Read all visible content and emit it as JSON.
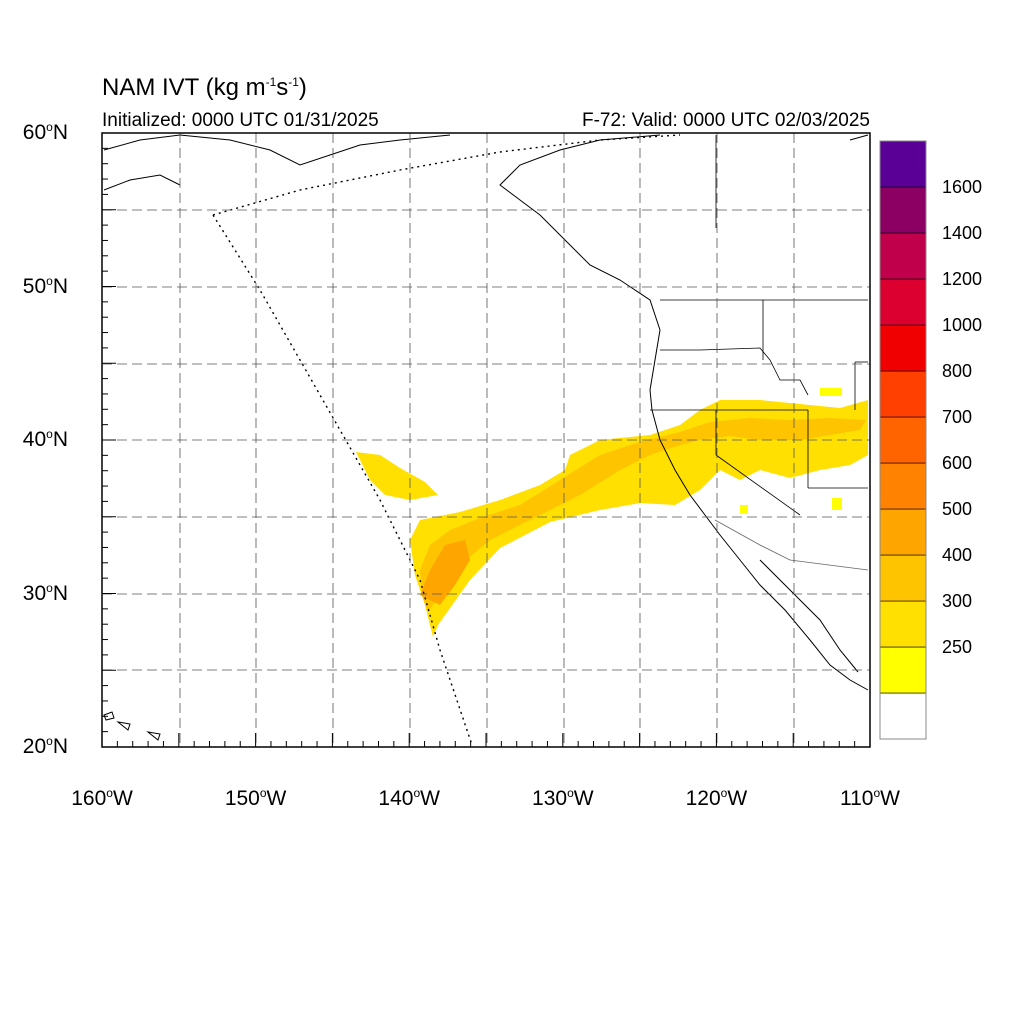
{
  "header": {
    "title": "NAM IVT (kg m",
    "title_sup1": "-1",
    "title_mid": "s",
    "title_sup2": "-1",
    "title_end": ")",
    "initialized": "Initialized: 0000 UTC 01/31/2025",
    "valid": "F-72: Valid: 0000 UTC 02/03/2025"
  },
  "axes": {
    "lat_labels": [
      {
        "deg": "60",
        "suffix": "N",
        "lat": 60
      },
      {
        "deg": "50",
        "suffix": "N",
        "lat": 50
      },
      {
        "deg": "40",
        "suffix": "N",
        "lat": 40
      },
      {
        "deg": "30",
        "suffix": "N",
        "lat": 30
      },
      {
        "deg": "20",
        "suffix": "N",
        "lat": 20
      }
    ],
    "lon_labels": [
      {
        "deg": "160",
        "suffix": "W",
        "lon": -160
      },
      {
        "deg": "150",
        "suffix": "W",
        "lon": -150
      },
      {
        "deg": "140",
        "suffix": "W",
        "lon": -140
      },
      {
        "deg": "130",
        "suffix": "W",
        "lon": -130
      },
      {
        "deg": "120",
        "suffix": "W",
        "lon": -120
      },
      {
        "deg": "110",
        "suffix": "W",
        "lon": -110
      }
    ],
    "lat_range": [
      20,
      60
    ],
    "lon_range": [
      -160,
      -110
    ],
    "grid": "dashed every 5 degrees"
  },
  "colorbar": {
    "levels": [
      {
        "label": "",
        "color": "#ffffff"
      },
      {
        "label": "250",
        "color": "#ffff00"
      },
      {
        "label": "300",
        "color": "#ffe000"
      },
      {
        "label": "400",
        "color": "#ffc400"
      },
      {
        "label": "500",
        "color": "#ffa500"
      },
      {
        "label": "600",
        "color": "#ff8200"
      },
      {
        "label": "700",
        "color": "#ff6400"
      },
      {
        "label": "800",
        "color": "#ff4000"
      },
      {
        "label": "1000",
        "color": "#f00000"
      },
      {
        "label": "1200",
        "color": "#dc0030"
      },
      {
        "label": "1400",
        "color": "#c0004a"
      },
      {
        "label": "1600",
        "color": "#8c0064"
      },
      {
        "label": "",
        "color": "#5a0096"
      }
    ]
  }
}
